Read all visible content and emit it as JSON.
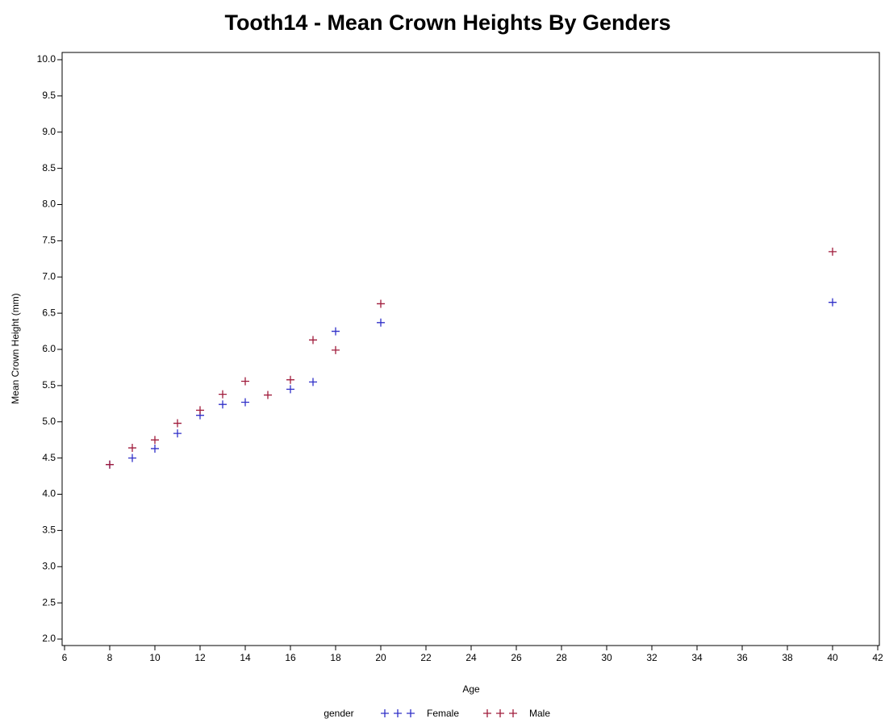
{
  "chart_data": {
    "type": "scatter",
    "title": "Tooth14 - Mean Crown Heights By Genders",
    "x_label": "Age",
    "y_label": "Mean Crown Height (mm)",
    "legend_title": "gender",
    "xlim": [
      6,
      42
    ],
    "xticks": [
      6,
      8,
      10,
      12,
      14,
      16,
      18,
      20,
      22,
      24,
      26,
      28,
      30,
      32,
      34,
      36,
      38,
      40,
      42
    ],
    "ylim": [
      2,
      10
    ],
    "yticks": [
      {
        "value": 2,
        "label": "2.0"
      },
      2.5,
      {
        "value": 3,
        "label": "3.0"
      },
      3.5,
      {
        "value": 4,
        "label": "4.0"
      },
      4.5,
      {
        "value": 5,
        "label": "5.0"
      },
      5.5,
      {
        "value": 6,
        "label": "6.0"
      },
      6.5,
      {
        "value": 7,
        "label": "7.0"
      },
      7.5,
      {
        "value": 8,
        "label": "8.0"
      },
      8.5,
      {
        "value": 9,
        "label": "9.0"
      },
      9.5,
      {
        "value": 10,
        "label": "10.0"
      }
    ],
    "series": [
      {
        "name": "Female",
        "color": "#3030c8",
        "x": [
          8,
          9,
          10,
          11,
          12,
          13,
          14,
          16,
          17,
          18,
          20,
          40
        ],
        "values": [
          4.41,
          4.5,
          4.63,
          4.84,
          5.09,
          5.24,
          5.27,
          5.45,
          5.55,
          6.25,
          6.37,
          6.65
        ]
      },
      {
        "name": "Male",
        "color": "#a01c3c",
        "x": [
          8,
          9,
          10,
          11,
          12,
          13,
          14,
          15,
          16,
          17,
          18,
          20,
          40
        ],
        "values": [
          4.41,
          4.64,
          4.75,
          4.98,
          5.16,
          5.38,
          5.56,
          5.37,
          5.58,
          6.13,
          5.99,
          6.63,
          7.35
        ]
      }
    ]
  }
}
